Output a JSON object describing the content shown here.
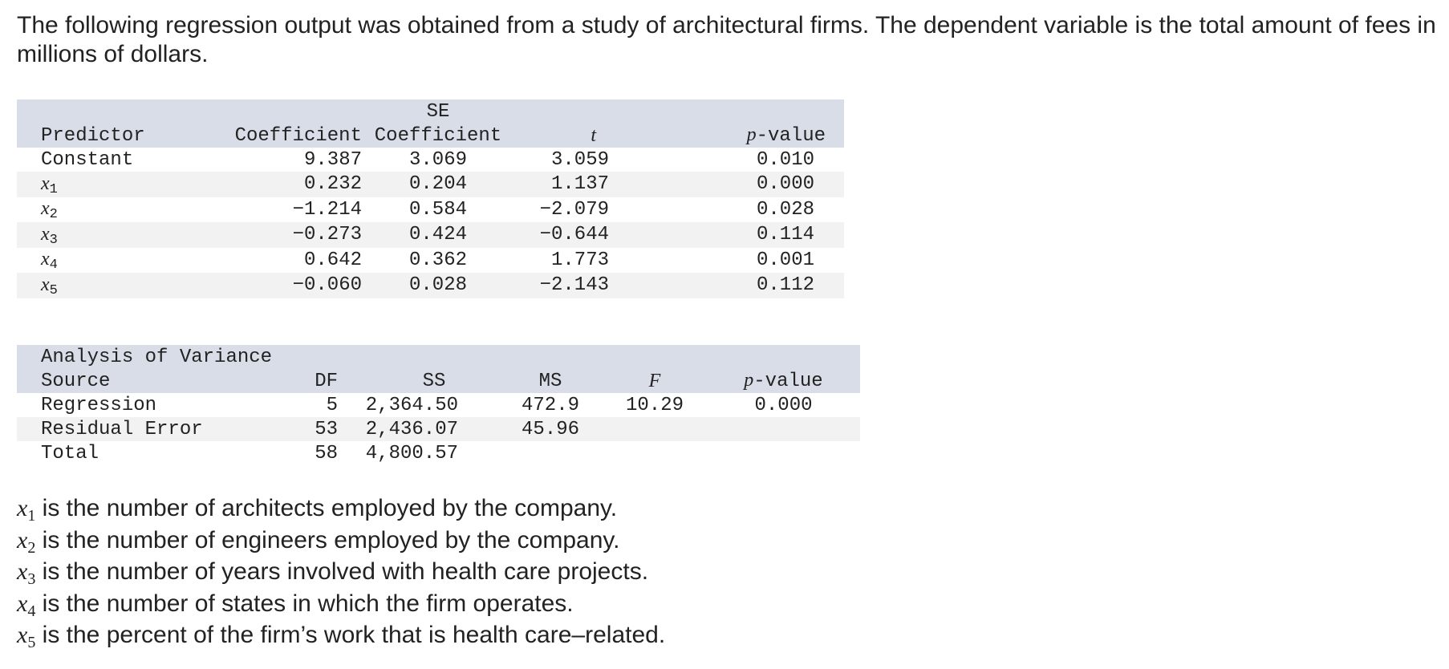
{
  "intro_text": "The following regression output was obtained from a study of architectural firms. The dependent variable is the total amount of fees in millions of dollars.",
  "regression_table": {
    "headers": {
      "predictor": "Predictor",
      "coefficient": "Coefficient",
      "se_top": "SE",
      "se_bottom": "Coefficient",
      "t": "t",
      "p_value": "p-value"
    },
    "rows": [
      {
        "var": "",
        "sub": "",
        "label": "Constant",
        "coef": "9.387",
        "se": "3.069",
        "t": "3.059",
        "p": "0.010"
      },
      {
        "var": "x",
        "sub": "1",
        "label": "",
        "coef": "0.232",
        "se": "0.204",
        "t": "1.137",
        "p": "0.000"
      },
      {
        "var": "x",
        "sub": "2",
        "label": "",
        "coef": "−1.214",
        "se": "0.584",
        "t": "−2.079",
        "p": "0.028"
      },
      {
        "var": "x",
        "sub": "3",
        "label": "",
        "coef": "−0.273",
        "se": "0.424",
        "t": "−0.644",
        "p": "0.114"
      },
      {
        "var": "x",
        "sub": "4",
        "label": "",
        "coef": "0.642",
        "se": "0.362",
        "t": "1.773",
        "p": "0.001"
      },
      {
        "var": "x",
        "sub": "5",
        "label": "",
        "coef": "−0.060",
        "se": "0.028",
        "t": "−2.143",
        "p": "0.112"
      }
    ]
  },
  "anova_table": {
    "title": "Analysis of Variance",
    "headers": {
      "source": "Source",
      "df": "DF",
      "ss": "SS",
      "ms": "MS",
      "f": "F",
      "p_value": "p-value"
    },
    "rows": [
      {
        "source": "Regression",
        "df": "5",
        "ss": "2,364.50",
        "ms": "472.9",
        "f": "10.29",
        "p": "0.000"
      },
      {
        "source": "Residual Error",
        "df": "53",
        "ss": "2,436.07",
        "ms": "45.96",
        "f": "",
        "p": ""
      },
      {
        "source": "Total",
        "df": "58",
        "ss": "4,800.57",
        "ms": "",
        "f": "",
        "p": ""
      }
    ]
  },
  "definitions": [
    {
      "var": "x",
      "sub": "1",
      "text": " is the number of architects employed by the company."
    },
    {
      "var": "x",
      "sub": "2",
      "text": " is the number of engineers employed by the company."
    },
    {
      "var": "x",
      "sub": "3",
      "text": " is the number of years involved with health care projects."
    },
    {
      "var": "x",
      "sub": "4",
      "text": " is the number of states in which the firm operates."
    },
    {
      "var": "x",
      "sub": "5",
      "text": " is the percent of the firm’s work that is health care–related."
    }
  ]
}
